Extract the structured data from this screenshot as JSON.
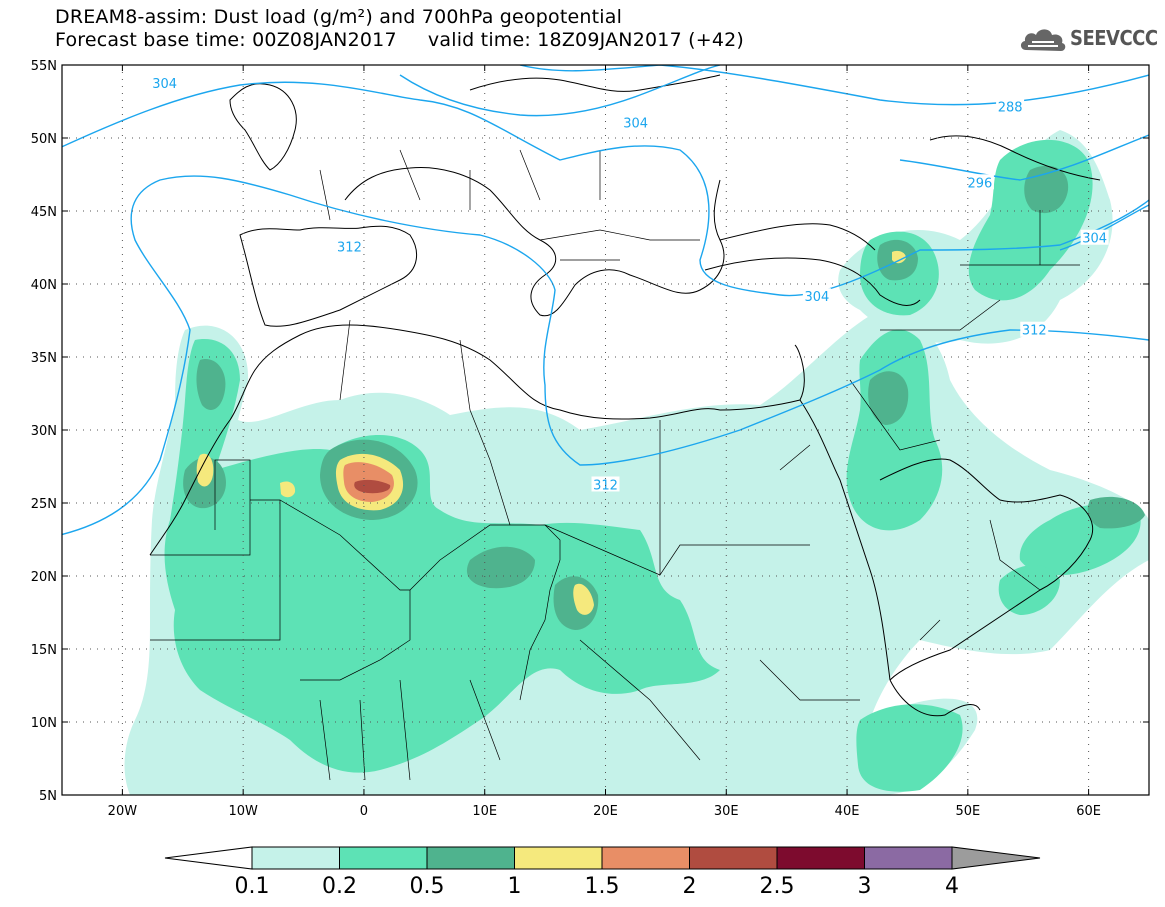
{
  "title": {
    "line1": "DREAM8-assim: Dust load (g/m²) and 700hPa geopotential",
    "line2": "Forecast base time: 00Z08JAN2017     valid time: 18Z09JAN2017 (+42)"
  },
  "logo": {
    "text": "SEEVCCC",
    "icon": "cloud-icon"
  },
  "map": {
    "lon_range": [
      -25,
      65
    ],
    "lat_range": [
      5,
      55
    ],
    "lat_ticks": [
      {
        "value": 55,
        "label": "55N"
      },
      {
        "value": 50,
        "label": "50N"
      },
      {
        "value": 45,
        "label": "45N"
      },
      {
        "value": 40,
        "label": "40N"
      },
      {
        "value": 35,
        "label": "35N"
      },
      {
        "value": 30,
        "label": "30N"
      },
      {
        "value": 25,
        "label": "25N"
      },
      {
        "value": 20,
        "label": "20N"
      },
      {
        "value": 15,
        "label": "15N"
      },
      {
        "value": 10,
        "label": "10N"
      },
      {
        "value": 5,
        "label": "5N"
      }
    ],
    "lon_ticks": [
      {
        "value": -20,
        "label": "20W"
      },
      {
        "value": -10,
        "label": "10W"
      },
      {
        "value": 0,
        "label": "0"
      },
      {
        "value": 10,
        "label": "10E"
      },
      {
        "value": 20,
        "label": "20E"
      },
      {
        "value": 30,
        "label": "30E"
      },
      {
        "value": 40,
        "label": "40E"
      },
      {
        "value": 50,
        "label": "50E"
      },
      {
        "value": 60,
        "label": "60E"
      }
    ],
    "contour_color": "#1ca6ee",
    "contour_labels": [
      {
        "text": "304",
        "lon": -16.5,
        "lat": 53.7
      },
      {
        "text": "304",
        "lon": 22.5,
        "lat": 51.0
      },
      {
        "text": "288",
        "lon": 53.5,
        "lat": 52.1
      },
      {
        "text": "296",
        "lon": 51.0,
        "lat": 46.9
      },
      {
        "text": "304",
        "lon": 60.5,
        "lat": 43.1
      },
      {
        "text": "312",
        "lon": -1.2,
        "lat": 42.5
      },
      {
        "text": "304",
        "lon": 37.5,
        "lat": 39.1
      },
      {
        "text": "312",
        "lon": 55.5,
        "lat": 36.8
      },
      {
        "text": "312",
        "lon": 20.0,
        "lat": 26.2
      }
    ]
  },
  "colorbar": {
    "levels": [
      "0.1",
      "0.2",
      "0.5",
      "1",
      "1.5",
      "2",
      "2.5",
      "3",
      "4"
    ],
    "colors": [
      "#c5f2e9",
      "#5de2b5",
      "#4fb38e",
      "#f5e97d",
      "#e88e66",
      "#b04c40",
      "#7d0b2e",
      "#8b6aa3",
      "#9c9c9c"
    ],
    "lower_extend_color": "#ffffff",
    "upper_extend_color": "#9c9c9c"
  }
}
